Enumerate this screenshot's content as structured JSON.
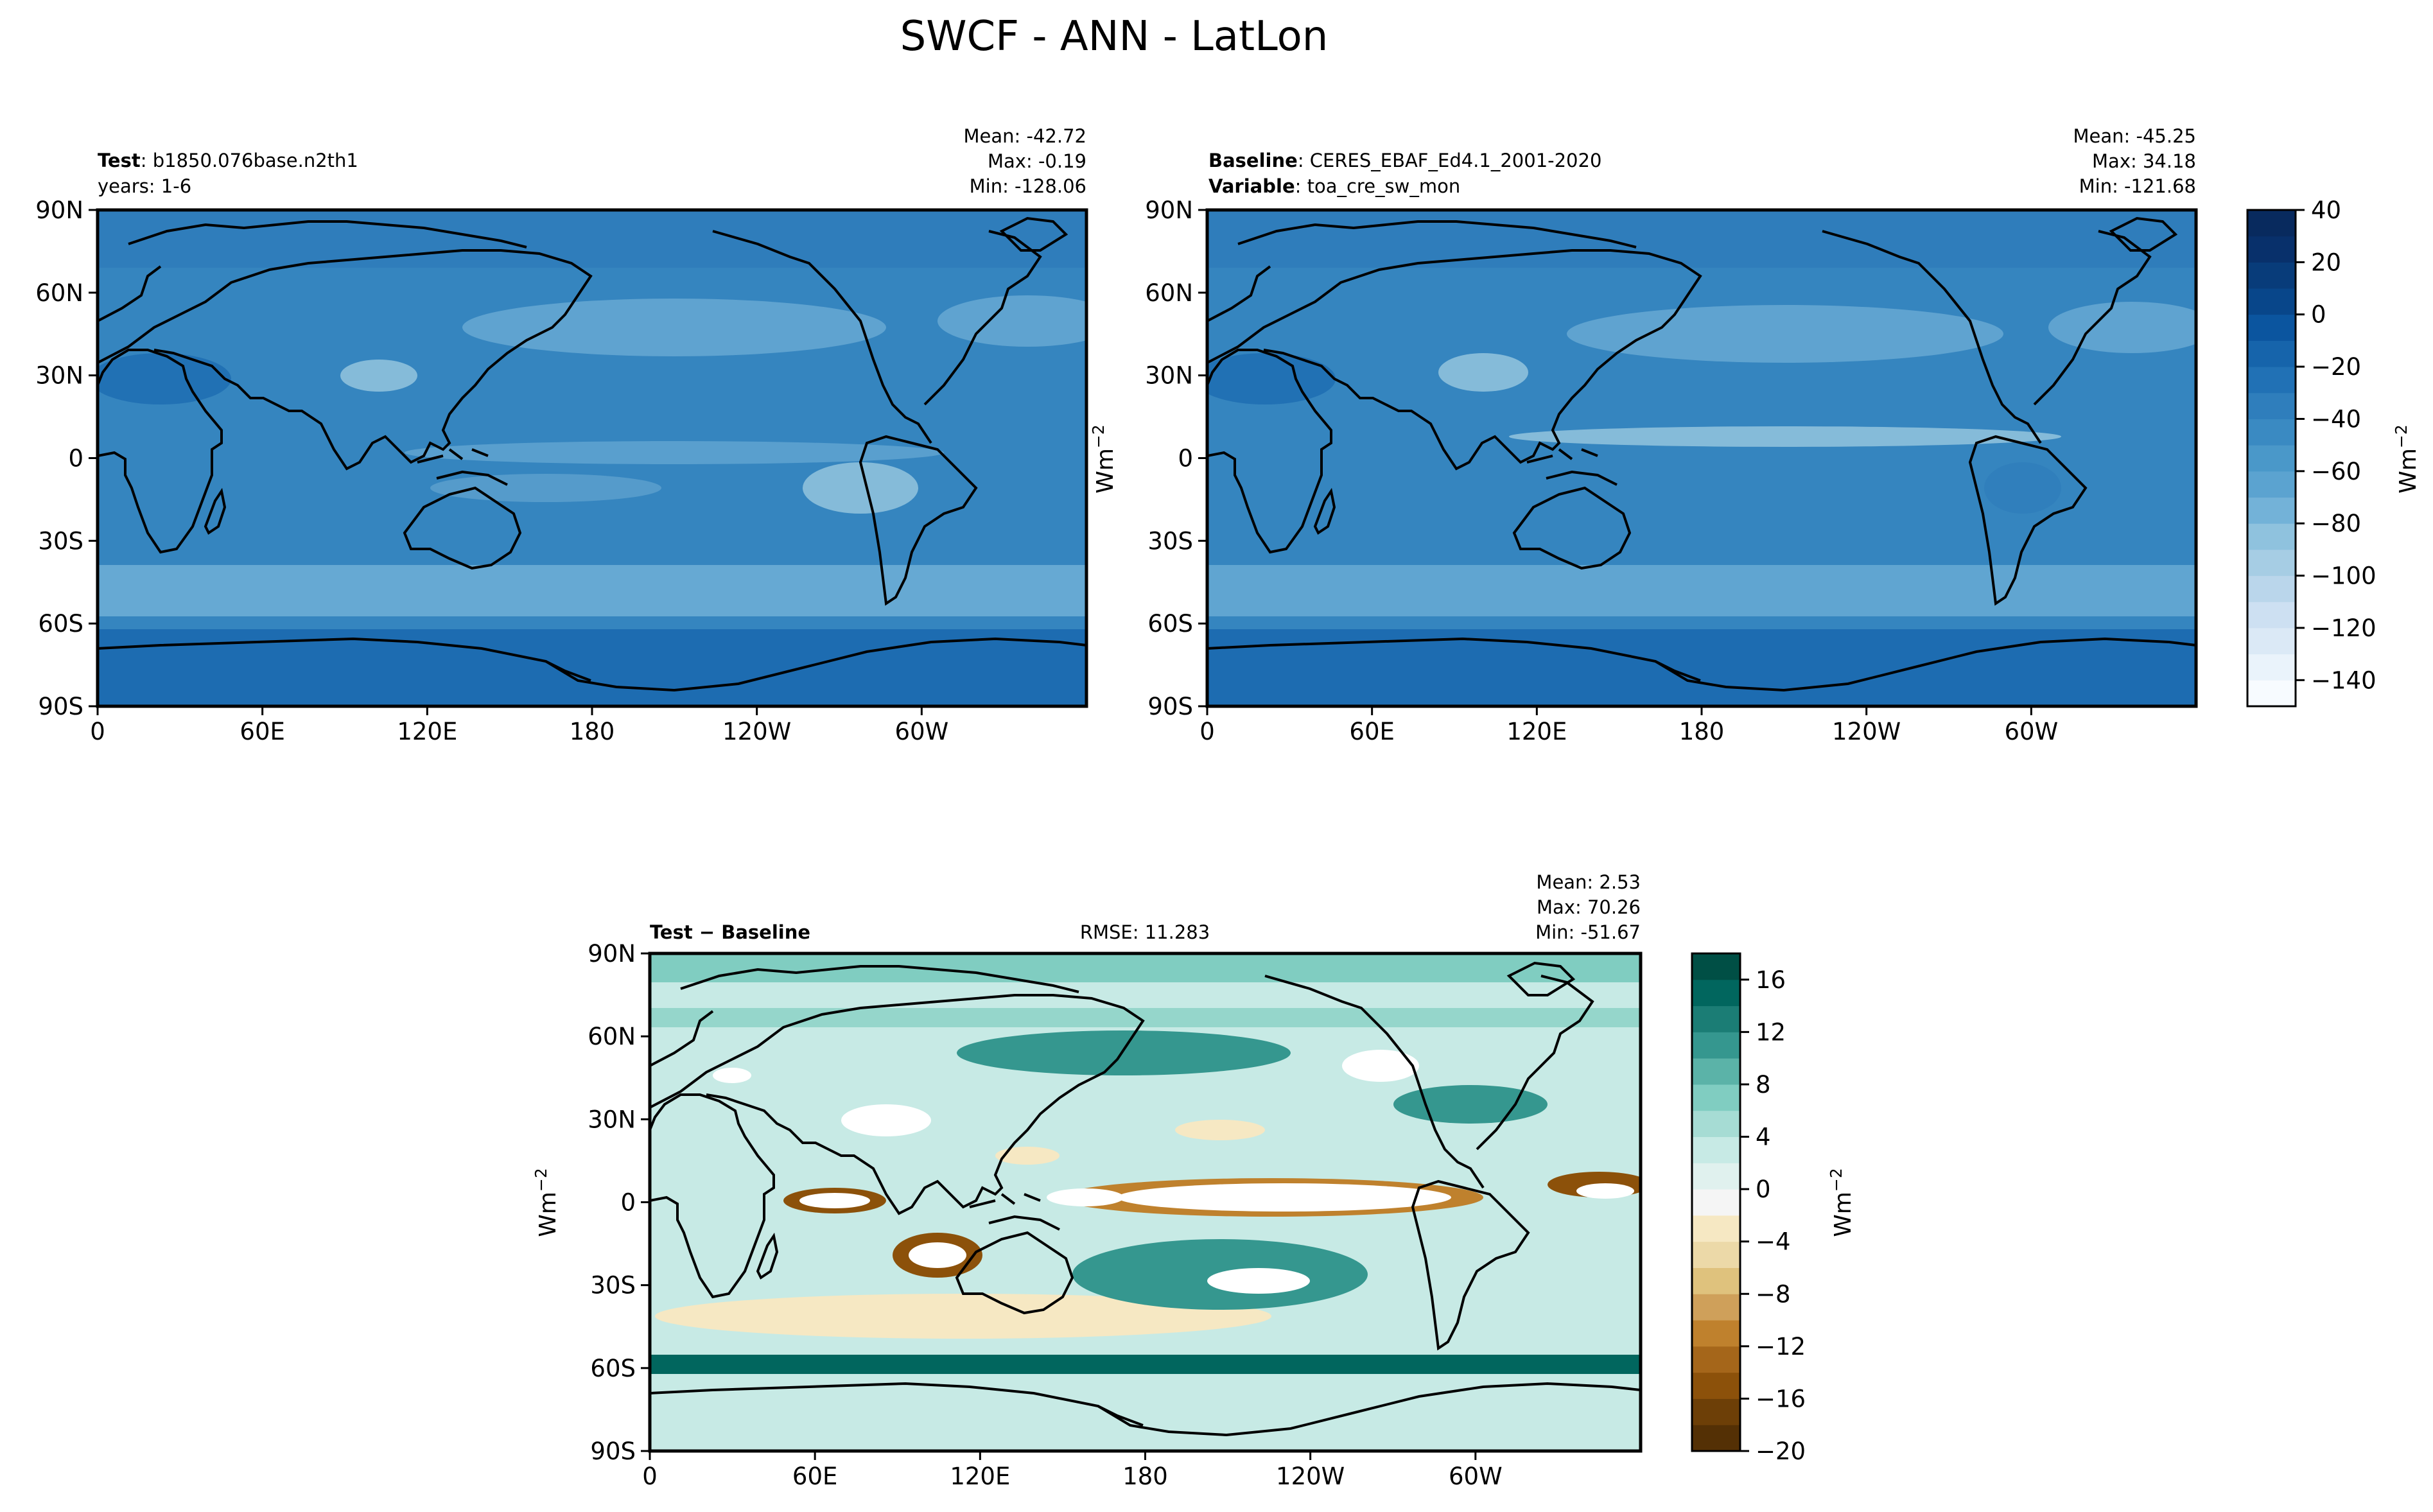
{
  "figure_title": "SWCF - ANN - LatLon",
  "colors": {
    "blues": [
      "#f7fbff",
      "#e4eff9",
      "#d1e3f3",
      "#bad6eb",
      "#9ac8e0",
      "#73b2d8",
      "#529dcc",
      "#3585bf",
      "#1d6cb1",
      "#08519c",
      "#08306b"
    ],
    "brbg": [
      "#543005",
      "#8c510a",
      "#bf812d",
      "#dfc27d",
      "#f6e8c3",
      "#f5f5f5",
      "#c7eae5",
      "#80cdc1",
      "#35978f",
      "#01665e",
      "#003c30"
    ]
  },
  "chart_data": [
    {
      "type": "heatmap",
      "panel": "test",
      "title_left_bold": "Test",
      "title_left_text": ": b1850.076base.n2th1",
      "title_left_line2": "years: 1-6",
      "stats": [
        "Mean: -42.72",
        "Max: -0.19",
        "Min: -128.06"
      ],
      "xticks": [
        "0",
        "60E",
        "120E",
        "180",
        "120W",
        "60W"
      ],
      "yticks": [
        "90N",
        "60N",
        "30N",
        "0",
        "30S",
        "60S",
        "90S"
      ],
      "xlim": [
        0,
        360
      ],
      "ylim": [
        -90,
        90
      ],
      "colormap": "Blues_r",
      "vrange": [
        -150,
        40
      ]
    },
    {
      "type": "heatmap",
      "panel": "baseline",
      "title_left_bold": "Baseline",
      "title_left_text": ": CERES_EBAF_Ed4.1_2001-2020",
      "title_left_bold2": "Variable",
      "title_left_text2": ": toa_cre_sw_mon",
      "stats": [
        "Mean: -45.25",
        "Max: 34.18",
        "Min: -121.68"
      ],
      "xticks": [
        "0",
        "60E",
        "120E",
        "180",
        "120W",
        "60W"
      ],
      "yticks": [
        "90N",
        "60N",
        "30N",
        "0",
        "30S",
        "60S",
        "90S"
      ],
      "xlim": [
        0,
        360
      ],
      "ylim": [
        -90,
        90
      ],
      "colormap": "Blues_r",
      "vrange": [
        -150,
        40
      ],
      "colorbar": {
        "label": "Wm",
        "label_sup": "−2",
        "ticks": [
          "40",
          "20",
          "0",
          "−20",
          "−40",
          "−60",
          "−80",
          "−100",
          "−120",
          "−140"
        ],
        "tick_values": [
          40,
          20,
          0,
          -20,
          -40,
          -60,
          -80,
          -100,
          -120,
          -140
        ],
        "range": [
          -150,
          40
        ]
      }
    },
    {
      "type": "heatmap",
      "panel": "difference",
      "title_left_bold": "Test − Baseline",
      "title_center": "RMSE: 11.283",
      "stats": [
        "Mean:  2.53",
        "Max: 70.26",
        "Min: -51.67"
      ],
      "ylabel": "Wm",
      "ylabel_sup": "−2",
      "xticks": [
        "0",
        "60E",
        "120E",
        "180",
        "120W",
        "60W"
      ],
      "yticks": [
        "90N",
        "60N",
        "30N",
        "0",
        "30S",
        "60S",
        "90S"
      ],
      "xlim": [
        0,
        360
      ],
      "ylim": [
        -90,
        90
      ],
      "colormap": "BrBG",
      "vrange": [
        -20,
        18
      ],
      "colorbar": {
        "label": "Wm",
        "label_sup": "−2",
        "ticks": [
          "16",
          "12",
          "8",
          "4",
          "0",
          "−4",
          "−8",
          "−12",
          "−16",
          "−20"
        ],
        "tick_values": [
          16,
          12,
          8,
          4,
          0,
          -4,
          -8,
          -12,
          -16,
          -20
        ],
        "range": [
          -20,
          18
        ]
      }
    }
  ]
}
